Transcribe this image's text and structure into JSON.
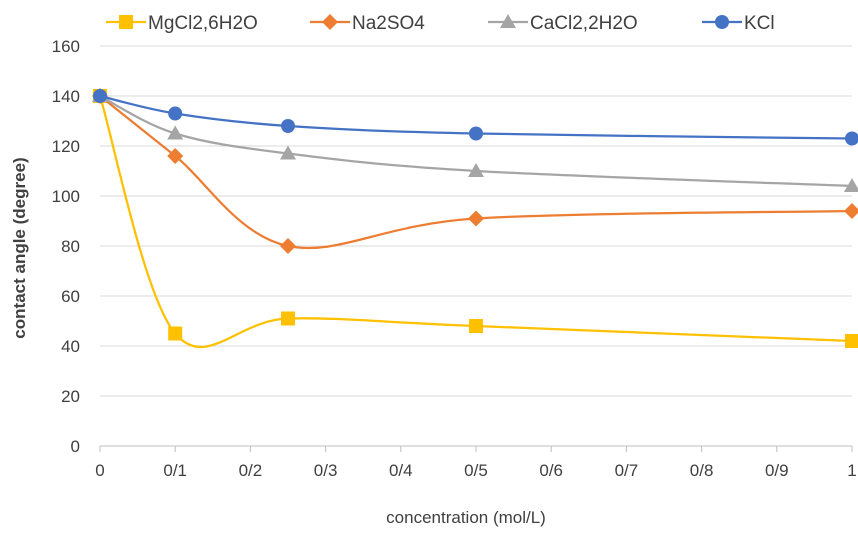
{
  "chart_data": {
    "type": "line",
    "title": "",
    "xlabel": "concentration (mol/L)",
    "ylabel": "contact angle (degree)",
    "xlim": [
      0,
      1
    ],
    "ylim": [
      0,
      160
    ],
    "x_ticks": [
      "0",
      "0/1",
      "0/2",
      "0/3",
      "0/4",
      "0/5",
      "0/6",
      "0/7",
      "0/8",
      "0/9",
      "1"
    ],
    "y_ticks": [
      "0",
      "20",
      "40",
      "60",
      "80",
      "100",
      "120",
      "140",
      "160"
    ],
    "grid": "horizontal",
    "legend_position": "top",
    "smooth": true,
    "series": [
      {
        "name": "MgCl2,6H2O",
        "color": "#FFC000",
        "marker": "square",
        "points": [
          [
            0,
            140
          ],
          [
            0.1,
            45
          ],
          [
            0.25,
            51
          ],
          [
            0.5,
            48
          ],
          [
            1,
            42
          ]
        ]
      },
      {
        "name": "Na2SO4",
        "color": "#ED7D31",
        "marker": "diamond",
        "points": [
          [
            0,
            140
          ],
          [
            0.1,
            116
          ],
          [
            0.25,
            80
          ],
          [
            0.5,
            91
          ],
          [
            1,
            94
          ]
        ]
      },
      {
        "name": "CaCl2,2H2O",
        "color": "#A5A5A5",
        "marker": "triangle",
        "points": [
          [
            0,
            140
          ],
          [
            0.1,
            125
          ],
          [
            0.25,
            117
          ],
          [
            0.5,
            110
          ],
          [
            1,
            104
          ]
        ]
      },
      {
        "name": "KCl",
        "color": "#4472C4",
        "marker": "circle",
        "points": [
          [
            0,
            140
          ],
          [
            0.1,
            133
          ],
          [
            0.25,
            128
          ],
          [
            0.5,
            125
          ],
          [
            1,
            123
          ]
        ]
      }
    ]
  }
}
